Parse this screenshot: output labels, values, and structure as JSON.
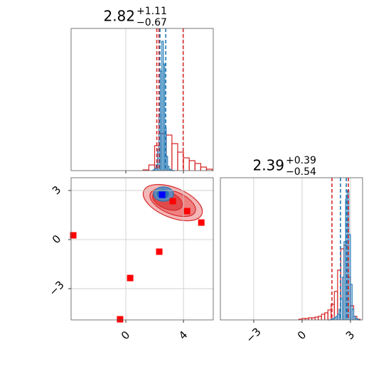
{
  "chart_data": [
    {
      "type": "histogram",
      "title": {
        "value": "2.82",
        "plus": "+1.11",
        "minus": "−0.67"
      },
      "xlim": [
        -3.8,
        6.07
      ],
      "ylim": [
        0,
        200
      ],
      "xticks": [
        0,
        4
      ],
      "grid": true,
      "series": [
        {
          "color": "#d62728",
          "bins": [
            1.2,
            1.6,
            2.0,
            2.4,
            2.8,
            3.2,
            3.6,
            4.0,
            4.4,
            4.8,
            5.2,
            5.6,
            6.0
          ],
          "values": [
            1,
            8,
            35,
            52,
            50,
            38,
            26,
            18,
            14,
            10,
            5,
            2
          ]
        },
        {
          "color": "#1f77b4",
          "bins": [
            1.8,
            1.9,
            2.0,
            2.1,
            2.2,
            2.3,
            2.4,
            2.5,
            2.6,
            2.7,
            2.8,
            2.9,
            3.0,
            3.1,
            3.2,
            3.3,
            3.4
          ],
          "values": [
            0,
            1,
            3,
            8,
            30,
            80,
            140,
            182,
            150,
            60,
            20,
            6,
            2,
            1,
            0,
            0
          ]
        }
      ],
      "lines": [
        {
          "color": "#d62728",
          "value": 2.15
        },
        {
          "color": "#d62728",
          "value": 2.3
        },
        {
          "color": "#d62728",
          "value": 3.98
        },
        {
          "color": "#1f77b4",
          "value": 2.37
        },
        {
          "color": "#1f77b4",
          "value": 2.77
        }
      ]
    },
    {
      "type": "scatter",
      "xlim": [
        -3.8,
        6.07
      ],
      "ylim": [
        -4.91,
        3.78
      ],
      "xticks": [
        0,
        4
      ],
      "yticks": [
        {
          "value": -3,
          "label": "−3"
        },
        0,
        3
      ],
      "grid": true,
      "series": [
        {
          "color": "#ff0000",
          "x": [
            -3.65,
            0.3,
            -0.4,
            2.32,
            3.26,
            4.25,
            5.24
          ],
          "values": [
            0.26,
            -2.35,
            -4.87,
            -0.74,
            2.35,
            1.74,
            1.04
          ]
        },
        {
          "color": "#0000ff",
          "x": [
            2.52
          ],
          "values": [
            2.74
          ]
        }
      ]
    },
    {
      "type": "histogram",
      "title": {
        "value": "2.39",
        "plus": "+0.39",
        "minus": "−0.54"
      },
      "xlim": [
        -5.07,
        3.75
      ],
      "ylim": [
        0,
        200
      ],
      "xticks": [
        {
          "value": -3,
          "label": "−3"
        },
        0,
        3
      ],
      "grid": true,
      "series": [
        {
          "color": "#d62728",
          "bins": [
            -0.2,
            0.0,
            0.2,
            0.4,
            0.6,
            0.8,
            1.0,
            1.2,
            1.4,
            1.6,
            1.8,
            2.0,
            2.2,
            2.4,
            2.6,
            2.8,
            3.0,
            3.2,
            3.4,
            3.6
          ],
          "values": [
            1,
            2,
            2,
            3,
            3,
            4,
            5,
            8,
            10,
            14,
            22,
            40,
            70,
            100,
            105,
            60,
            20,
            5,
            1
          ]
        },
        {
          "color": "#1f77b4",
          "bins": [
            1.6,
            1.7,
            1.8,
            1.9,
            2.0,
            2.1,
            2.2,
            2.3,
            2.4,
            2.5,
            2.6,
            2.7,
            2.8,
            2.9,
            3.0,
            3.1,
            3.2,
            3.3,
            3.4,
            3.5,
            3.6
          ],
          "values": [
            0,
            0,
            1,
            2,
            3,
            5,
            8,
            15,
            30,
            60,
            110,
            170,
            182,
            120,
            50,
            15,
            5,
            2,
            1,
            0
          ]
        }
      ],
      "lines": [
        {
          "color": "#d62728",
          "value": 1.85
        },
        {
          "color": "#d62728",
          "value": 2.87
        },
        {
          "color": "#1f77b4",
          "value": 2.38
        },
        {
          "color": "#1f77b4",
          "value": 2.74
        }
      ]
    }
  ]
}
